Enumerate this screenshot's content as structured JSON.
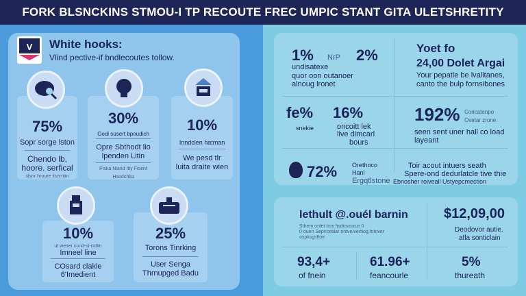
{
  "header": {
    "title": "FORK BLSNCKINS STMOU-I TP RECOUTE FREC UMPIC STANT GITA ULETSHRETITY"
  },
  "intro": {
    "title": "White hooks:",
    "subtitle": "Vlind pective-if bndlecoutes tollow."
  },
  "left_cards": [
    {
      "icon": "magnifier-icon",
      "value": "75%",
      "label": "Sopr sorge lston",
      "lines": [
        "Chendo lb,",
        "hoore. serfical"
      ],
      "tiny": "slsnr hroure ilsnrntin"
    },
    {
      "icon": "lightbulb-icon",
      "value": "30%",
      "label": "Godi susert bpoudich",
      "lines": [
        "Opre Sbthodt lio",
        "lpenden Litin"
      ],
      "tiny": "Piska Nland Itty Fisenf Hsodohlia"
    },
    {
      "icon": "building-icon",
      "value": "10%",
      "label": "Inndclen hatman",
      "lines": [
        "We pesd tlr",
        "luita draite wien"
      ],
      "tiny": ""
    },
    {
      "icon": "machine-icon",
      "value": "10%",
      "label": "Imneel line",
      "lines": [
        "COsard clakle",
        "6'Imedient"
      ],
      "tiny": "ut weser cond-sl-cidlin"
    },
    {
      "icon": "briefcase-icon",
      "value": "25%",
      "label": "Torons Tinrking",
      "lines": [
        "User Senga",
        "Thrnupged Badu"
      ],
      "tiny": ""
    }
  ],
  "right_top": [
    {
      "value": "1%",
      "value2": "2%",
      "tiny": "NrP",
      "lines": [
        "undisatexe",
        "quor oon outanoer",
        "alnoug lronet"
      ]
    },
    {
      "heading": "Yoet fo",
      "value": "24,00 Dolet Argai",
      "lines": [
        "Your pepatle be lvalitanes,",
        "canto the bulp fornsibones"
      ]
    },
    {
      "value": "fe%",
      "value2": "16%",
      "lines": [
        "snekie",
        "oncoitt lek",
        "live dimcarl",
        "bours"
      ]
    },
    {
      "value": "192%",
      "side": [
        "Coricatenpo",
        "Ovetar zrone"
      ],
      "lines": [
        "seen sent uner hall co load",
        "layeant"
      ]
    },
    {
      "value": "72%",
      "side": [
        "Orethoco",
        "Hanl",
        "Ergqtlstone"
      ],
      "lines": [
        "Toir acout intuers seath",
        "Spere-ond dedurlatcle tive thie",
        "Ebnosher   roiveall Ustyepcmection"
      ]
    }
  ],
  "right_bottom": {
    "title": "lethult @.ouél barnin",
    "desc": [
      "Sthem onlet tros fisdiovsuszi 0",
      "0 ouen Sepricetilar ontve/verhog,fotover",
      "ospksgsfloe"
    ],
    "money": "$12,09,00",
    "money_lines": [
      "Deodovor autie.",
      "afla sonticlain"
    ],
    "stats": [
      {
        "value": "93,4+",
        "label": "of fnein"
      },
      {
        "value": "61.96+",
        "label": "feancourle"
      },
      {
        "value": "5%",
        "label": "thureath"
      }
    ]
  }
}
